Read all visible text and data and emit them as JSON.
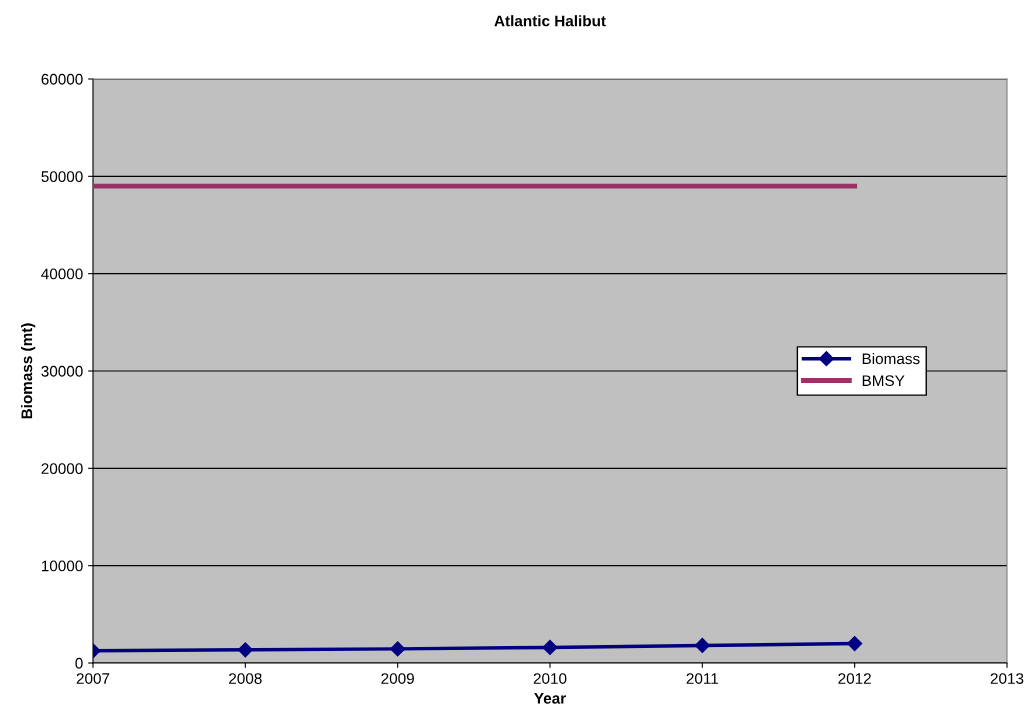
{
  "chart_data": {
    "type": "line",
    "title": "Atlantic Halibut",
    "xlabel": "Year",
    "ylabel": "Biomass (mt)",
    "x": [
      2007,
      2008,
      2009,
      2010,
      2011,
      2012
    ],
    "series": [
      {
        "name": "Biomass",
        "color": "#000080",
        "values": [
          1250,
          1350,
          1450,
          1600,
          1800,
          2000
        ],
        "marker": "diamond"
      },
      {
        "name": "BMSY",
        "color": "#993366",
        "values": [
          49000,
          49000,
          49000,
          49000,
          49000,
          49000
        ],
        "marker": "none"
      }
    ],
    "xlim": [
      2007,
      2013
    ],
    "xticks": [
      2007,
      2008,
      2009,
      2010,
      2011,
      2012,
      2013
    ],
    "ylim": [
      0,
      60000
    ],
    "yticks": [
      0,
      10000,
      20000,
      30000,
      40000,
      50000,
      60000
    ],
    "grid": "y",
    "legend": "right"
  }
}
